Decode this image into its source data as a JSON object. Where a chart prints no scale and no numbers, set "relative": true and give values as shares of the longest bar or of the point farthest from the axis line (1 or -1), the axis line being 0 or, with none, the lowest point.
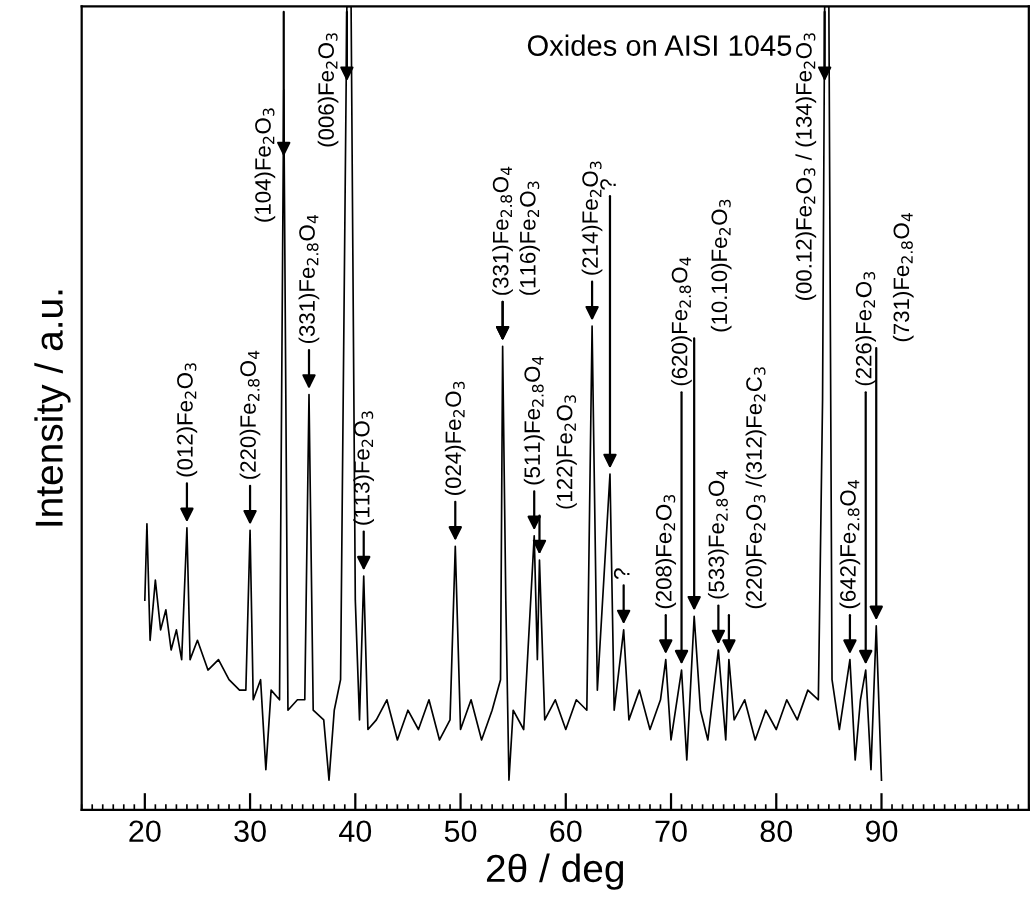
{
  "chart_data": {
    "type": "line",
    "title": "Oxides on AISI 1045",
    "xlabel": "2θ / deg",
    "ylabel": "Intensity / a.u.",
    "relative": true,
    "xlim": [
      14,
      104
    ],
    "xticks": [
      20,
      30,
      40,
      50,
      60,
      70,
      80,
      90
    ],
    "grid": false,
    "marker": "none",
    "line_style": "solid",
    "series": [
      {
        "color": "#000000",
        "x": [
          20.0,
          20.2,
          20.5,
          21,
          21.5,
          22,
          22.5,
          23,
          23.5,
          24,
          24.3,
          25,
          26,
          27,
          28,
          29,
          29.6,
          30,
          30.3,
          31,
          31.5,
          32,
          32.8,
          33.2,
          33.6,
          34.5,
          35.2,
          35.6,
          36,
          37,
          37.5,
          38,
          38.6,
          39.2,
          39.6,
          40,
          40.4,
          40.8,
          41.2,
          42,
          43,
          44,
          45,
          46,
          47,
          48,
          49,
          49.5,
          50,
          51,
          52,
          53,
          53.8,
          54.0,
          54.3,
          54.6,
          55,
          56,
          57,
          57.3,
          57.5,
          58,
          59,
          60,
          61,
          62,
          62.5,
          63,
          64.2,
          64.6,
          65.5,
          66,
          67,
          68,
          69,
          69.5,
          70,
          71,
          71.5,
          72.2,
          72.8,
          73.5,
          74.5,
          75.2,
          75.5,
          76,
          77,
          78,
          79,
          80,
          81,
          82,
          83,
          84,
          84.4,
          84.6,
          85.0,
          85.3,
          86,
          87,
          87.5,
          88,
          88.5,
          89,
          89.5,
          90
        ],
        "values": [
          0.261,
          0.356,
          0.211,
          0.286,
          0.224,
          0.249,
          0.199,
          0.224,
          0.187,
          0.351,
          0.187,
          0.211,
          0.174,
          0.187,
          0.162,
          0.149,
          0.149,
          0.348,
          0.137,
          0.162,
          0.05,
          0.149,
          0.137,
          0.896,
          0.124,
          0.137,
          0.137,
          0.517,
          0.124,
          0.112,
          0.037,
          0.124,
          0.162,
          1,
          1,
          0.261,
          0.112,
          0.291,
          0.1,
          0.112,
          0.137,
          0.087,
          0.124,
          0.1,
          0.137,
          0.087,
          0.112,
          0.328,
          0.1,
          0.137,
          0.087,
          0.124,
          0.162,
          0.577,
          0.261,
          0.037,
          0.124,
          0.1,
          0.341,
          0.187,
          0.311,
          0.112,
          0.137,
          0.1,
          0.137,
          0.124,
          0.602,
          0.149,
          0.418,
          0.124,
          0.224,
          0.112,
          0.149,
          0.1,
          0.137,
          0.187,
          0.087,
          0.174,
          0.062,
          0.241,
          0.124,
          0.087,
          0.199,
          0.087,
          0.187,
          0.112,
          0.137,
          0.087,
          0.124,
          0.1,
          0.137,
          0.112,
          0.149,
          0.137,
          0.51,
          1,
          1,
          0.162,
          0.1,
          0.187,
          0.062,
          0.137,
          0.174,
          0.05,
          0.229,
          0.037
        ]
      }
    ],
    "annotations": [
      {
        "text": "(012)Fe$_{2}$O$_{3}$",
        "x": 24,
        "y": 0.351
      },
      {
        "text": "(220)Fe$_{2.8}$O$_{4}$",
        "x": 30,
        "y": 0.348
      },
      {
        "text": "(104)Fe$_{2}$O$_{3}$",
        "x": 33.2,
        "y": 0.896
      },
      {
        "text": "(331)Fe$_{2.8}$O$_{4}$",
        "x": 35.6,
        "y": 0.517
      },
      {
        "text": "(006)Fe$_{2}$O$_{3}$",
        "x": 39.2,
        "y": 1
      },
      {
        "text": "(113)Fe$_{2}$O$_{3}$",
        "x": 40.8,
        "y": 0.291
      },
      {
        "text": "(024)Fe$_{2}$O$_{3}$",
        "x": 49.5,
        "y": 0.328
      },
      {
        "text": "(331)Fe$_{2.8}$O$_{4}$",
        "x": 54.0,
        "y": 0.577
      },
      {
        "text": "(116)Fe$_{2}$O$_{3}$",
        "x": 54.0,
        "y": 0.577
      },
      {
        "text": "(511)Fe$_{2.8}$O$_{4}$",
        "x": 57,
        "y": 0.341
      },
      {
        "text": "(122)Fe$_{2}$O$_{3}$",
        "x": 57.5,
        "y": 0.311
      },
      {
        "text": "(214)Fe$_{2}$O$_{3}$",
        "x": 62.5,
        "y": 0.602
      },
      {
        "text": "?",
        "x": 64.2,
        "y": 0.418
      },
      {
        "text": "?",
        "x": 65.5,
        "y": 0.224
      },
      {
        "text": "(208)Fe$_{2}$O$_{3}$",
        "x": 69.5,
        "y": 0.187
      },
      {
        "text": "(620)Fe$_{2.8}$O$_{4}$",
        "x": 71,
        "y": 0.174
      },
      {
        "text": "(10.10)Fe$_{2}$O$_{3}$",
        "x": 72.2,
        "y": 0.241
      },
      {
        "text": "(533)Fe$_{2.8}$O$_{4}$",
        "x": 74.5,
        "y": 0.199
      },
      {
        "text": "(220)Fe$_{2}$O$_{3}$ /(312)Fe$_{2}$C$_{3}$",
        "x": 75.5,
        "y": 0.187
      },
      {
        "text": "(00.12)Fe$_{2}$O$_{3}$ / (134)Fe$_{2}$O$_{3}$",
        "x": 84.6,
        "y": 1
      },
      {
        "text": "(642)Fe$_{2.8}$O$_{4}$",
        "x": 87,
        "y": 0.187
      },
      {
        "text": "(226)Fe$_{2}$O$_{3}$",
        "x": 88.5,
        "y": 0.174
      },
      {
        "text": "(731)Fe$_{2.8}$O$_{4}$",
        "x": 89.5,
        "y": 0.229
      }
    ]
  }
}
